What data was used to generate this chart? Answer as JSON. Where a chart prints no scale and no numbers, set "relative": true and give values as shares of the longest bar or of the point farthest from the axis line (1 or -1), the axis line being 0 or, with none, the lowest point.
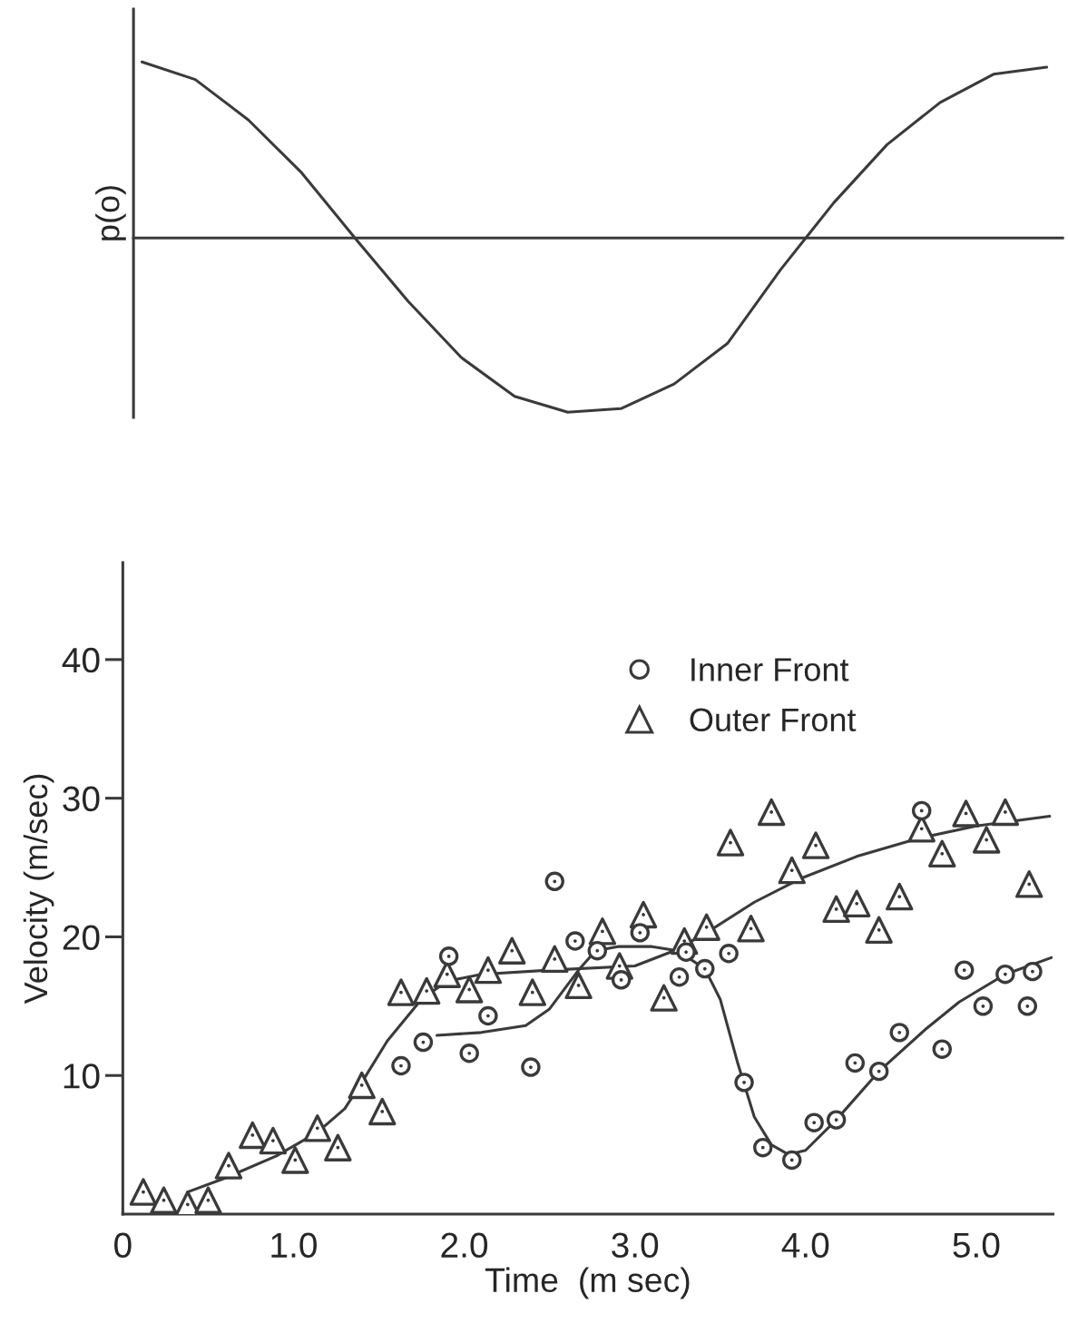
{
  "chart_data": [
    {
      "type": "line",
      "relative": true,
      "ylabel": "p(o)",
      "color": "#3a3a3a",
      "line_style": "solid",
      "categories": [
        null,
        null,
        null,
        null,
        null,
        null,
        null,
        null,
        null,
        null,
        null,
        null,
        null,
        null,
        null,
        null,
        null,
        null
      ],
      "values": [
        1.0,
        0.9,
        0.67,
        0.37,
        0.0,
        -0.36,
        -0.68,
        -0.9,
        -0.99,
        -0.97,
        -0.83,
        -0.6,
        -0.18,
        0.2,
        0.53,
        0.77,
        0.93,
        0.97
      ]
    },
    {
      "type": "scatter",
      "xlabel": "Time  (m sec)",
      "ylabel": "Velocity (m/sec)",
      "legend": "top right",
      "xlim": [
        0,
        5.45
      ],
      "ylim": [
        0,
        47
      ],
      "xticks": [
        {
          "value": 0,
          "label": "0"
        },
        {
          "value": 1,
          "label": "1.0"
        },
        {
          "value": 2,
          "label": "2.0"
        },
        {
          "value": 3,
          "label": "3.0"
        },
        {
          "value": 4,
          "label": "4.0"
        },
        {
          "value": 5,
          "label": "5.0"
        }
      ],
      "yticks": [
        10,
        20,
        30,
        40
      ],
      "series": [
        {
          "name": "Inner Front",
          "type": "scatter",
          "marker": "circle",
          "color": "#3a3a3a",
          "x": [
            1.63,
            1.76,
            1.91,
            2.03,
            2.14,
            2.39,
            2.53,
            2.65,
            2.78,
            2.92,
            3.03,
            3.26,
            3.3,
            3.41,
            3.55,
            3.64,
            3.75,
            3.92,
            4.05,
            4.18,
            4.29,
            4.43,
            4.55,
            4.68,
            4.8,
            4.93,
            5.04,
            5.17,
            5.3,
            5.33
          ],
          "values": [
            10.7,
            12.4,
            18.6,
            11.6,
            14.3,
            10.6,
            24.0,
            19.7,
            19.0,
            16.9,
            20.3,
            17.1,
            18.9,
            17.7,
            18.8,
            9.5,
            4.8,
            3.9,
            6.6,
            6.8,
            10.9,
            10.3,
            13.1,
            29.1,
            11.9,
            17.6,
            15.0,
            17.3,
            15.0,
            17.5
          ]
        },
        {
          "name": "Outer Front",
          "type": "scatter",
          "marker": "triangle",
          "color": "#3a3a3a",
          "x": [
            0.12,
            0.24,
            0.38,
            0.5,
            0.62,
            0.76,
            0.88,
            1.01,
            1.14,
            1.26,
            1.4,
            1.52,
            1.63,
            1.78,
            1.9,
            2.03,
            2.14,
            2.28,
            2.4,
            2.53,
            2.67,
            2.81,
            2.91,
            3.05,
            3.17,
            3.29,
            3.42,
            3.56,
            3.68,
            3.8,
            3.92,
            4.06,
            4.18,
            4.3,
            4.43,
            4.55,
            4.68,
            4.8,
            4.94,
            5.06,
            5.17,
            5.31
          ],
          "values": [
            1.6,
            1.0,
            0.7,
            1.0,
            3.5,
            5.7,
            5.3,
            3.9,
            6.2,
            4.8,
            9.3,
            7.4,
            16.0,
            16.1,
            17.3,
            16.2,
            17.6,
            19.0,
            16.0,
            18.4,
            16.5,
            20.4,
            17.9,
            21.6,
            15.6,
            19.7,
            20.7,
            26.8,
            20.6,
            29.0,
            24.8,
            26.6,
            22.0,
            22.4,
            20.5,
            22.9,
            27.8,
            26.0,
            28.9,
            27.0,
            29.0,
            23.8
          ]
        },
        {
          "type": "line",
          "marker": "none",
          "line_style": "solid",
          "color": "#3a3a3a",
          "x": [
            0.38,
            0.6,
            0.9,
            1.14,
            1.3,
            1.4,
            1.55,
            1.75,
            1.9,
            2.1,
            2.5,
            3.0,
            3.23,
            3.42,
            3.7,
            3.97,
            4.3,
            4.66,
            5.0,
            5.43
          ],
          "values": [
            1.6,
            2.6,
            4.2,
            5.9,
            7.6,
            9.5,
            12.5,
            15.5,
            16.8,
            17.3,
            17.6,
            17.9,
            19.0,
            20.3,
            22.5,
            24.2,
            25.8,
            27.1,
            28.0,
            28.7
          ]
        },
        {
          "type": "line",
          "marker": "none",
          "line_style": "solid",
          "color": "#3a3a3a",
          "x": [
            1.84,
            2.1,
            2.36,
            2.5,
            2.67,
            2.77,
            2.9,
            3.1,
            3.25,
            3.41,
            3.5,
            3.6,
            3.7,
            3.8,
            3.9,
            4.0,
            4.18,
            4.43,
            4.7,
            4.9,
            5.17,
            5.44
          ],
          "values": [
            12.9,
            13.1,
            13.6,
            14.8,
            17.6,
            19.0,
            19.3,
            19.3,
            19.0,
            17.7,
            15.5,
            11.0,
            7.0,
            5.0,
            4.3,
            4.6,
            6.8,
            10.3,
            13.3,
            15.3,
            17.3,
            18.5
          ]
        }
      ]
    }
  ]
}
